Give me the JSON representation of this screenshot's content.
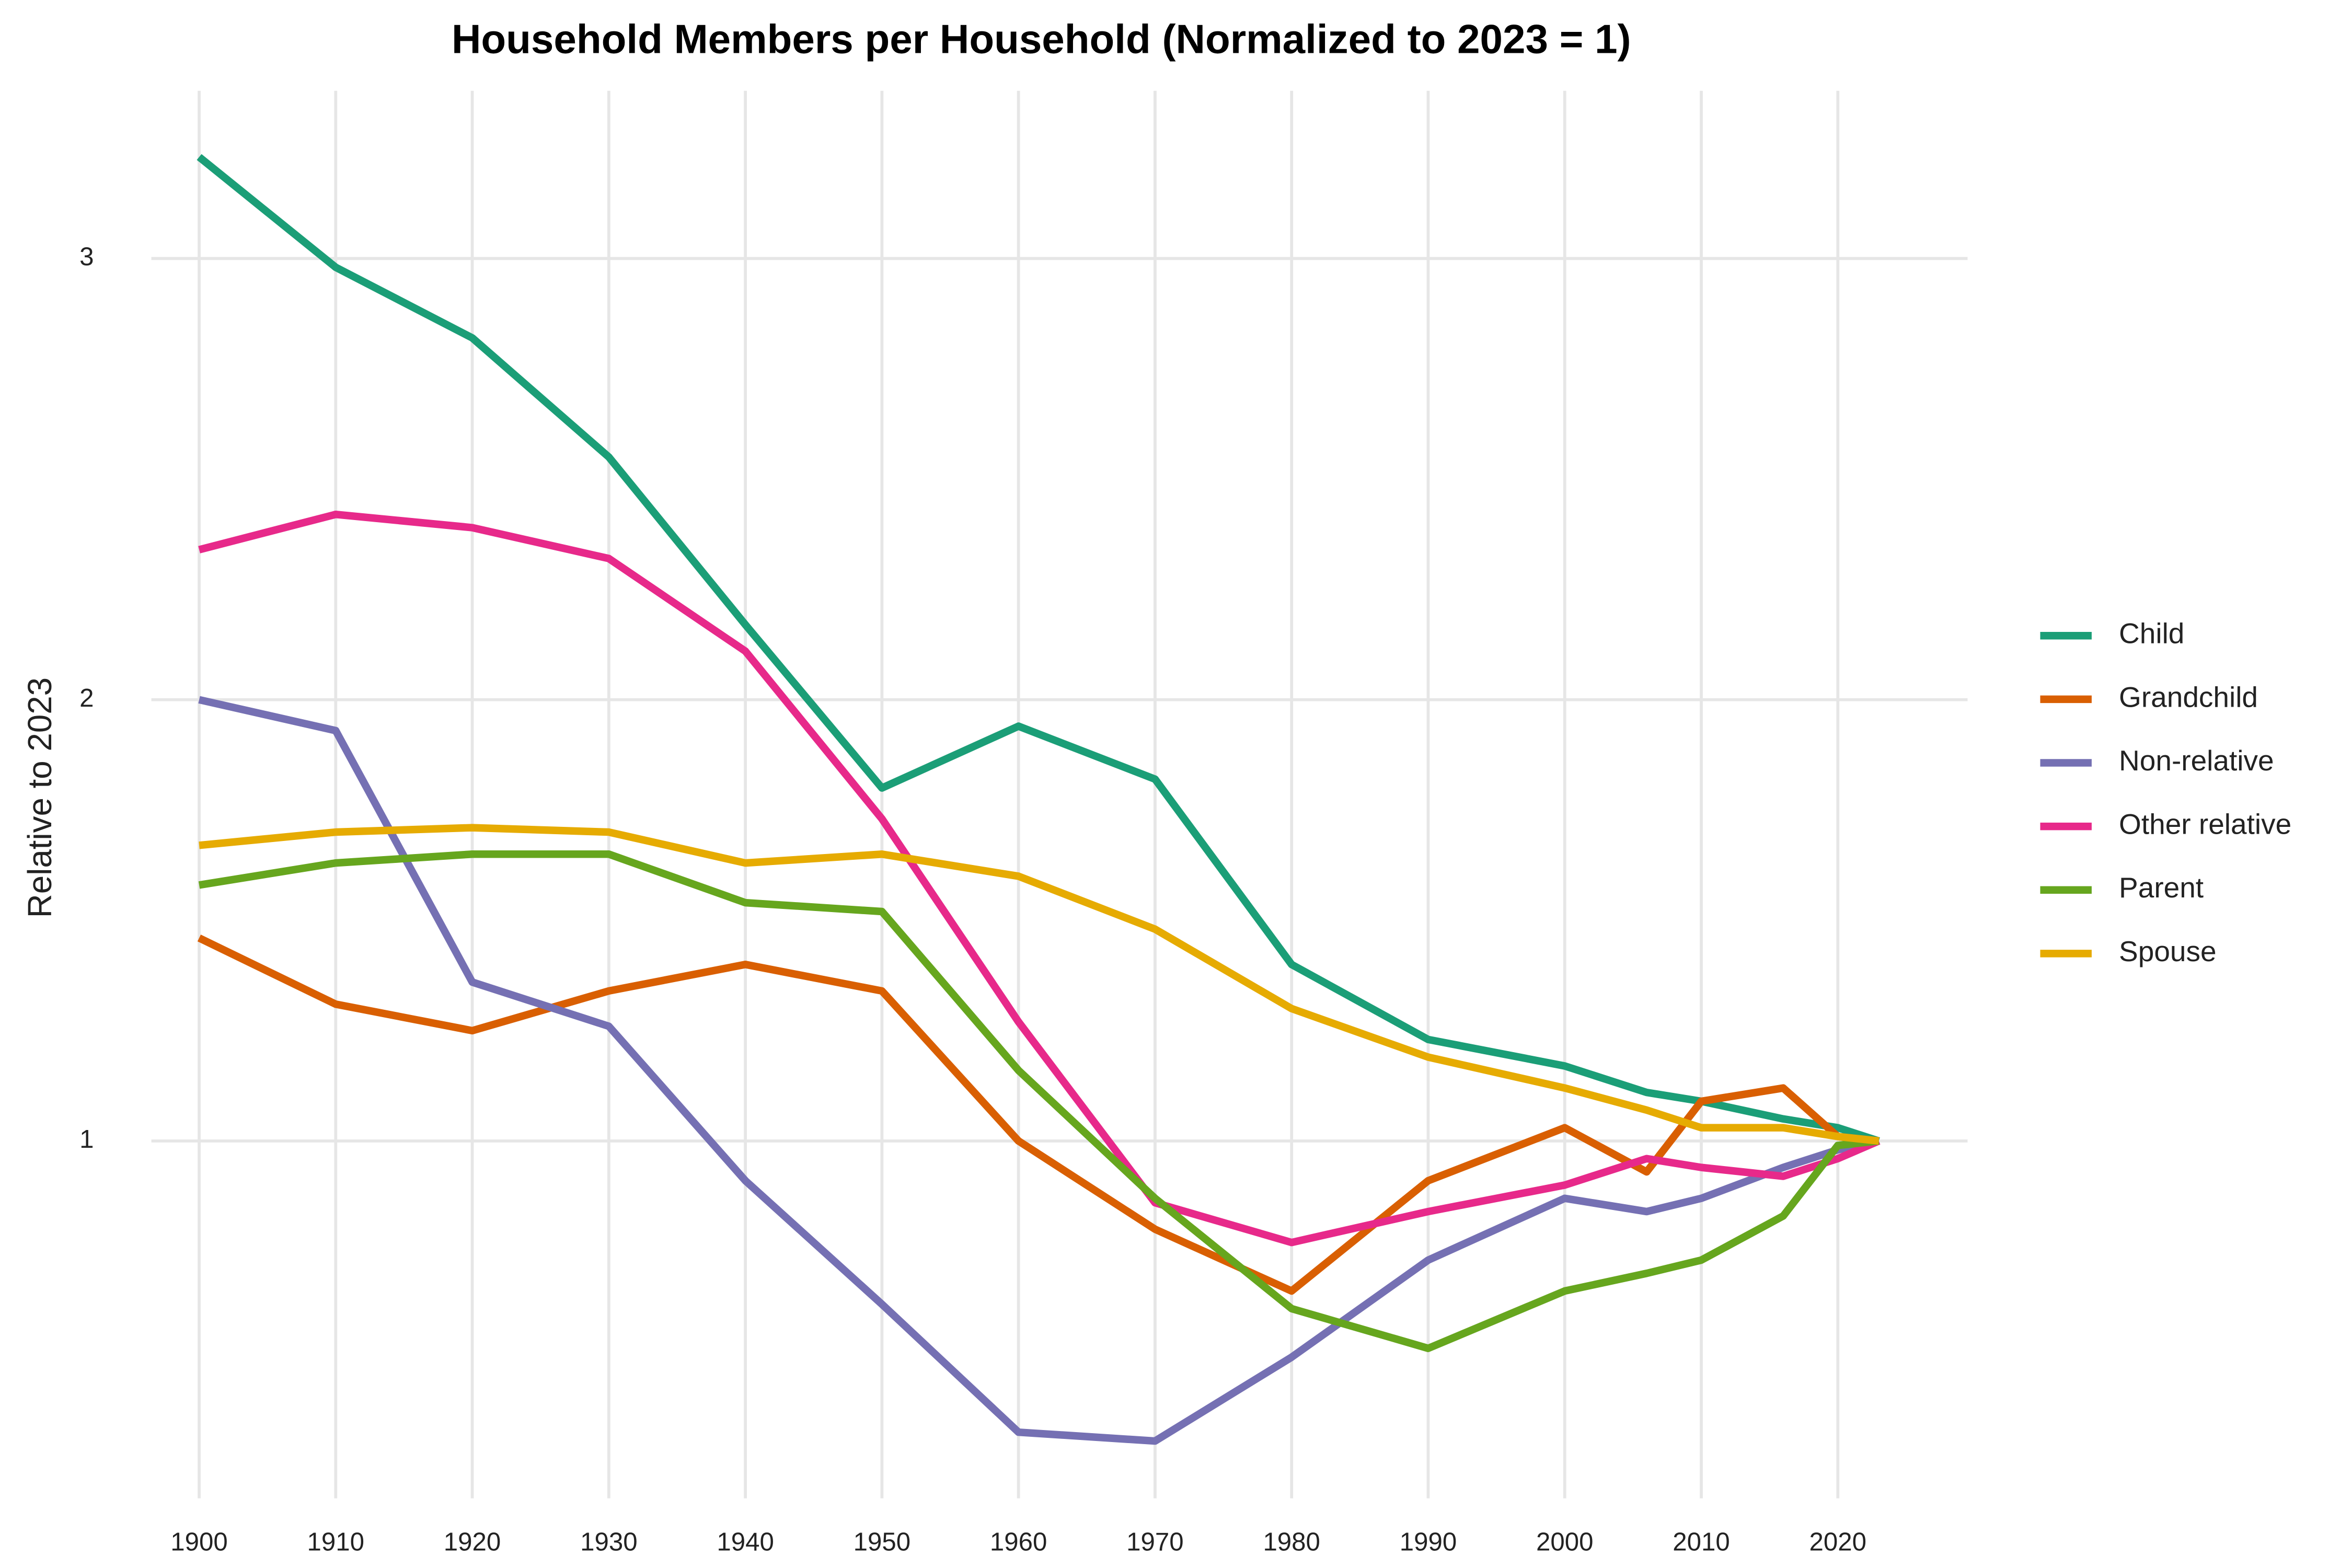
{
  "chart_data": {
    "type": "line",
    "title": "Household Members per Household (Normalized to 2023 = 1)",
    "y_label": "Relative to 2023",
    "x": [
      1900,
      1910,
      1920,
      1930,
      1940,
      1950,
      1960,
      1970,
      1980,
      1990,
      2000,
      2006,
      2010,
      2016,
      2020,
      2023
    ],
    "series": [
      {
        "name": "Child",
        "color": "#1b9e77",
        "values": [
          3.23,
          2.98,
          2.82,
          2.55,
          2.17,
          1.8,
          1.94,
          1.82,
          1.4,
          1.23,
          1.17,
          1.11,
          1.09,
          1.05,
          1.03,
          1
        ]
      },
      {
        "name": "Grandchild",
        "color": "#d95f02",
        "values": [
          1.46,
          1.31,
          1.25,
          1.34,
          1.4,
          1.34,
          1.0,
          0.8,
          0.66,
          0.91,
          1.03,
          0.93,
          1.09,
          1.12,
          1.01,
          1
        ]
      },
      {
        "name": "Non-relative",
        "color": "#7570b3",
        "values": [
          2.0,
          1.93,
          1.36,
          1.26,
          0.91,
          0.63,
          0.34,
          0.32,
          0.51,
          0.73,
          0.87,
          0.84,
          0.87,
          0.94,
          0.98,
          1
        ]
      },
      {
        "name": "Other relative",
        "color": "#e7298a",
        "values": [
          2.34,
          2.42,
          2.39,
          2.32,
          2.11,
          1.73,
          1.27,
          0.86,
          0.77,
          0.84,
          0.9,
          0.96,
          0.94,
          0.92,
          0.96,
          1
        ]
      },
      {
        "name": "Parent",
        "color": "#66a61e",
        "values": [
          1.58,
          1.63,
          1.65,
          1.65,
          1.54,
          1.52,
          1.16,
          0.87,
          0.62,
          0.53,
          0.66,
          0.7,
          0.73,
          0.83,
          0.99,
          1
        ]
      },
      {
        "name": "Spouse",
        "color": "#e6ab02",
        "values": [
          1.67,
          1.7,
          1.71,
          1.7,
          1.63,
          1.65,
          1.6,
          1.48,
          1.3,
          1.19,
          1.12,
          1.07,
          1.03,
          1.03,
          1.01,
          1
        ]
      }
    ],
    "xlim": [
      1896.5,
      2029.5
    ],
    "xticks": [
      1900,
      1910,
      1920,
      1930,
      1940,
      1950,
      1960,
      1970,
      1980,
      1990,
      2000,
      2010,
      2020
    ],
    "ylim": [
      0.19,
      3.38
    ],
    "yticks": [
      1,
      2,
      3
    ],
    "grid": true,
    "legend": "right"
  }
}
